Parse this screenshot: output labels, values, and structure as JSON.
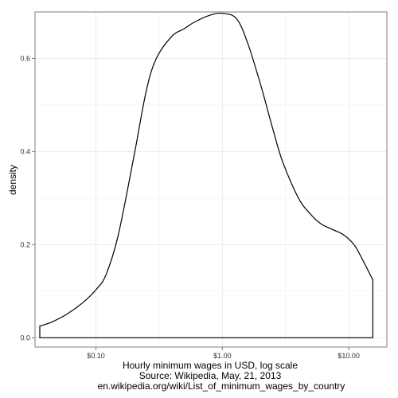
{
  "chart_data": {
    "type": "area",
    "title": "",
    "ylabel": "density",
    "xlabel_lines": [
      "Hourly minimum wages in USD, log scale",
      "Source: Wikipedia, May, 21, 2013",
      "en.wikipedia.org/wiki/List_of_minimum_wages_by_country"
    ],
    "x_scale": "log10",
    "xlim": [
      0.033,
      20
    ],
    "ylim": [
      -0.02,
      0.7
    ],
    "x_ticks": [
      {
        "value": 0.1,
        "label": "$0.10"
      },
      {
        "value": 1,
        "label": "$1.00"
      },
      {
        "value": 10,
        "label": "$10.00"
      }
    ],
    "y_ticks": [
      {
        "value": 0.0,
        "label": "0.0"
      },
      {
        "value": 0.2,
        "label": "0.2"
      },
      {
        "value": 0.4,
        "label": "0.4"
      },
      {
        "value": 0.6,
        "label": "0.6"
      }
    ],
    "grid": true,
    "fill": "none",
    "stroke": "#000000",
    "panel_border": "#7f7f7f",
    "grid_color": "#ececec",
    "series": [
      {
        "x": [
          0.036,
          0.045,
          0.06,
          0.08,
          0.1,
          0.12,
          0.15,
          0.2,
          0.25,
          0.3,
          0.4,
          0.5,
          0.6,
          0.8,
          1.0,
          1.3,
          1.6,
          2.0,
          2.5,
          3.0,
          4.0,
          5.0,
          6.0,
          7.5,
          9.0,
          11.0,
          13.0,
          15.5
        ],
        "y": [
          0.025,
          0.034,
          0.052,
          0.077,
          0.103,
          0.135,
          0.22,
          0.39,
          0.53,
          0.6,
          0.648,
          0.664,
          0.678,
          0.693,
          0.697,
          0.685,
          0.63,
          0.545,
          0.45,
          0.378,
          0.3,
          0.265,
          0.245,
          0.232,
          0.222,
          0.2,
          0.165,
          0.124
        ]
      }
    ]
  }
}
